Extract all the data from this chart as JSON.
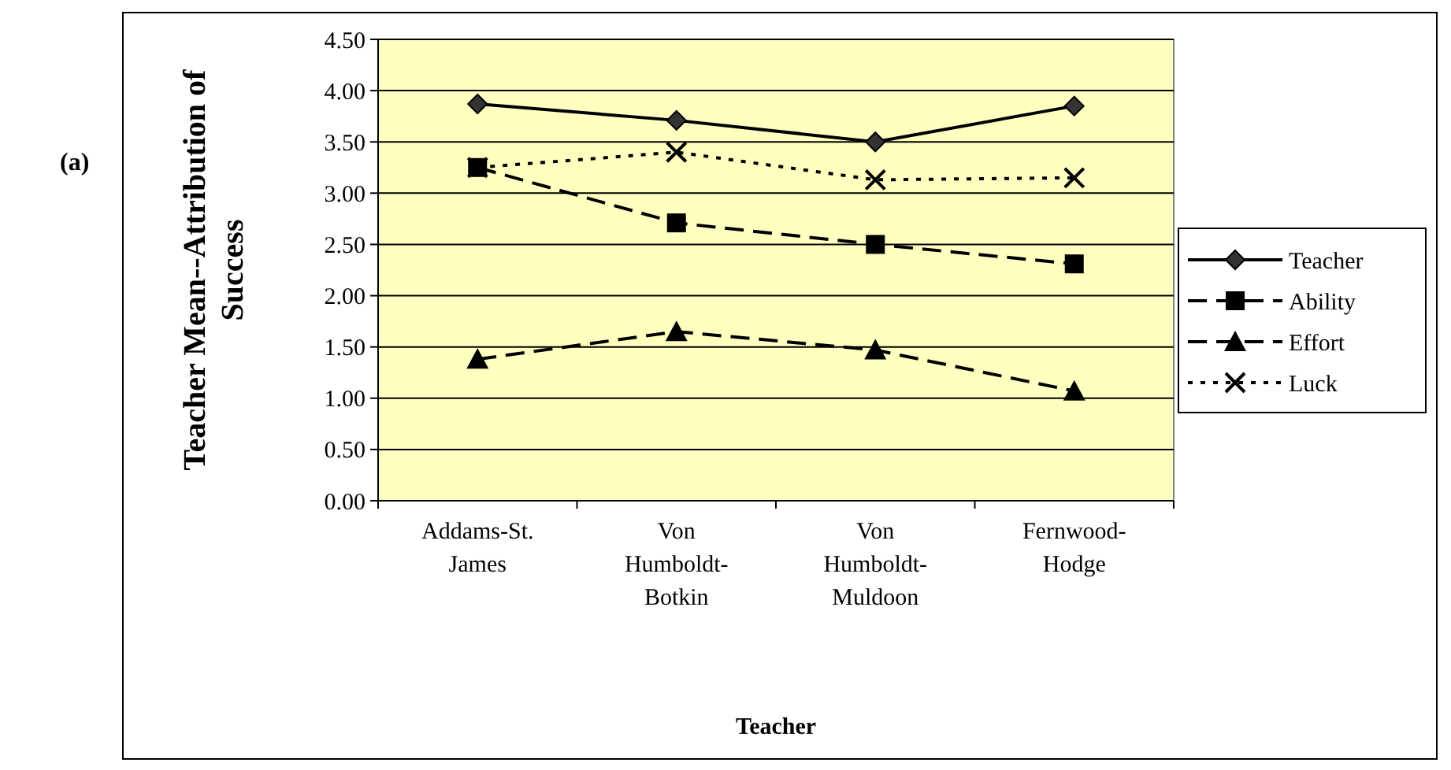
{
  "chart_data": {
    "type": "line",
    "xlabel": "Teacher",
    "ylabel": "Teacher Mean--Attribution of Success",
    "annotations": [
      "(a)"
    ],
    "categories": [
      "Addams-St. James",
      "Von Humboldt-Botkin",
      "Von Humboldt-Muldoon",
      "Fernwood-Hodge"
    ],
    "series": [
      {
        "name": "Teacher",
        "color": "#000000",
        "values": [
          3.87,
          3.71,
          3.5,
          3.85
        ],
        "marker": "diamond",
        "line_style": "solid"
      },
      {
        "name": "Ability",
        "color": "#000000",
        "values": [
          3.25,
          2.71,
          2.5,
          2.31
        ],
        "marker": "square",
        "line_style": "dashed"
      },
      {
        "name": "Effort",
        "color": "#000000",
        "values": [
          1.38,
          1.65,
          1.47,
          1.07
        ],
        "marker": "triangle",
        "line_style": "dashed"
      },
      {
        "name": "Luck",
        "color": "#000000",
        "values": [
          3.25,
          3.4,
          3.13,
          3.15
        ],
        "marker": "cross",
        "line_style": "dotted"
      }
    ],
    "ylim": [
      0,
      4.5
    ],
    "yticks": [
      {
        "value": 0,
        "label": "0.00"
      },
      {
        "value": 0.5,
        "label": "0.50"
      },
      {
        "value": 1,
        "label": "1.00"
      },
      {
        "value": 1.5,
        "label": "1.50"
      },
      {
        "value": 2,
        "label": "2.00"
      },
      {
        "value": 2.5,
        "label": "2.50"
      },
      {
        "value": 3,
        "label": "3.00"
      },
      {
        "value": 3.5,
        "label": "3.50"
      },
      {
        "value": 4,
        "label": "4.00"
      },
      {
        "value": 4.5,
        "label": "4.50"
      }
    ],
    "grid": "y",
    "legend": "right"
  }
}
